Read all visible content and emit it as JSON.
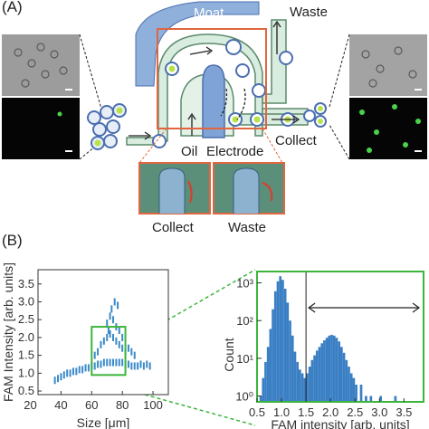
{
  "panel_a": {
    "label": "(A)",
    "labels": {
      "moat": "Moat",
      "waste": "Waste",
      "oil": "Oil",
      "electrode": "Electrode",
      "collect": "Collect",
      "inset_collect": "Collect",
      "inset_waste": "Waste"
    },
    "colors": {
      "moat": "#8fb0da",
      "channel": "#d8ecdf",
      "highlight": "#e0663f",
      "droplet_pos": "#b7e34a"
    }
  },
  "panel_b": {
    "label": "(B)"
  },
  "chart_data": [
    {
      "type": "scatter",
      "xlabel": "Size [μm]",
      "ylabel": "FAM Intensity [arb. units]",
      "xlim": [
        25,
        110
      ],
      "ylim": [
        0.4,
        3.9
      ],
      "xticks": [
        "20",
        "40",
        "60",
        "80",
        "100"
      ],
      "yticks": [
        "0.5",
        "1.0",
        "1.5",
        "2.0",
        "2.5",
        "3.0",
        "3.5"
      ],
      "gate": {
        "x": [
          60,
          82
        ],
        "y": [
          0.95,
          2.3
        ]
      },
      "color": "#3a8ac9",
      "points": [
        [
          36,
          0.8
        ],
        [
          38,
          0.85
        ],
        [
          40,
          0.9
        ],
        [
          42,
          0.95
        ],
        [
          44,
          1.0
        ],
        [
          46,
          1.0
        ],
        [
          48,
          1.05
        ],
        [
          50,
          1.05
        ],
        [
          52,
          1.1
        ],
        [
          54,
          1.1
        ],
        [
          56,
          1.15
        ],
        [
          58,
          1.15
        ],
        [
          60,
          1.2
        ],
        [
          62,
          1.2
        ],
        [
          64,
          1.25
        ],
        [
          66,
          1.25
        ],
        [
          68,
          1.3
        ],
        [
          70,
          1.3
        ],
        [
          72,
          1.3
        ],
        [
          74,
          1.3
        ],
        [
          76,
          1.3
        ],
        [
          78,
          1.3
        ],
        [
          80,
          1.3
        ],
        [
          82,
          1.25
        ],
        [
          84,
          1.25
        ],
        [
          86,
          1.2
        ],
        [
          88,
          1.2
        ],
        [
          90,
          1.2
        ],
        [
          92,
          1.25
        ],
        [
          94,
          1.2
        ],
        [
          96,
          1.25
        ],
        [
          98,
          1.2
        ],
        [
          66,
          1.8
        ],
        [
          68,
          1.9
        ],
        [
          70,
          2.0
        ],
        [
          72,
          2.1
        ],
        [
          74,
          2.0
        ],
        [
          76,
          1.9
        ],
        [
          78,
          1.8
        ],
        [
          80,
          1.7
        ],
        [
          70,
          2.4
        ],
        [
          72,
          2.6
        ],
        [
          74,
          2.5
        ],
        [
          76,
          2.3
        ],
        [
          73,
          2.8
        ],
        [
          75,
          3.0
        ],
        [
          77,
          2.9
        ],
        [
          71,
          2.2
        ],
        [
          82,
          1.6
        ],
        [
          84,
          1.7
        ],
        [
          86,
          1.6
        ],
        [
          88,
          1.5
        ],
        [
          64,
          1.6
        ],
        [
          62,
          1.5
        ],
        [
          78,
          2.2
        ],
        [
          80,
          2.0
        ]
      ]
    },
    {
      "type": "bar",
      "xlabel": "FAM intensity [arb. units]",
      "ylabel": "Count",
      "xlim": [
        0.5,
        3.9
      ],
      "yscale": "log",
      "ylim": [
        0.7,
        2000
      ],
      "xticks": [
        "0.5",
        "1.0",
        "1.5",
        "2.0",
        "2.5",
        "3.0",
        "3.5"
      ],
      "yticks": [
        "10⁰",
        "10¹",
        "10²",
        "10³"
      ],
      "threshold": 1.5,
      "color": "#3a7fc4",
      "bins": [
        [
          0.55,
          1
        ],
        [
          0.6,
          3
        ],
        [
          0.65,
          8
        ],
        [
          0.7,
          20
        ],
        [
          0.75,
          60
        ],
        [
          0.8,
          200
        ],
        [
          0.85,
          600
        ],
        [
          0.9,
          1100
        ],
        [
          0.95,
          1500
        ],
        [
          1.0,
          1200
        ],
        [
          1.05,
          700
        ],
        [
          1.1,
          300
        ],
        [
          1.15,
          100
        ],
        [
          1.2,
          40
        ],
        [
          1.25,
          15
        ],
        [
          1.3,
          8
        ],
        [
          1.35,
          5
        ],
        [
          1.4,
          4
        ],
        [
          1.45,
          3
        ],
        [
          1.5,
          4
        ],
        [
          1.55,
          6
        ],
        [
          1.6,
          9
        ],
        [
          1.65,
          12
        ],
        [
          1.7,
          16
        ],
        [
          1.75,
          20
        ],
        [
          1.8,
          25
        ],
        [
          1.85,
          30
        ],
        [
          1.9,
          35
        ],
        [
          1.95,
          40
        ],
        [
          2.0,
          42
        ],
        [
          2.05,
          40
        ],
        [
          2.1,
          35
        ],
        [
          2.15,
          28
        ],
        [
          2.2,
          20
        ],
        [
          2.25,
          14
        ],
        [
          2.3,
          9
        ],
        [
          2.35,
          6
        ],
        [
          2.4,
          4
        ],
        [
          2.45,
          3
        ],
        [
          2.5,
          2
        ],
        [
          2.6,
          2
        ],
        [
          2.7,
          1
        ],
        [
          2.8,
          1
        ],
        [
          3.0,
          1
        ],
        [
          3.3,
          1
        ]
      ]
    }
  ]
}
